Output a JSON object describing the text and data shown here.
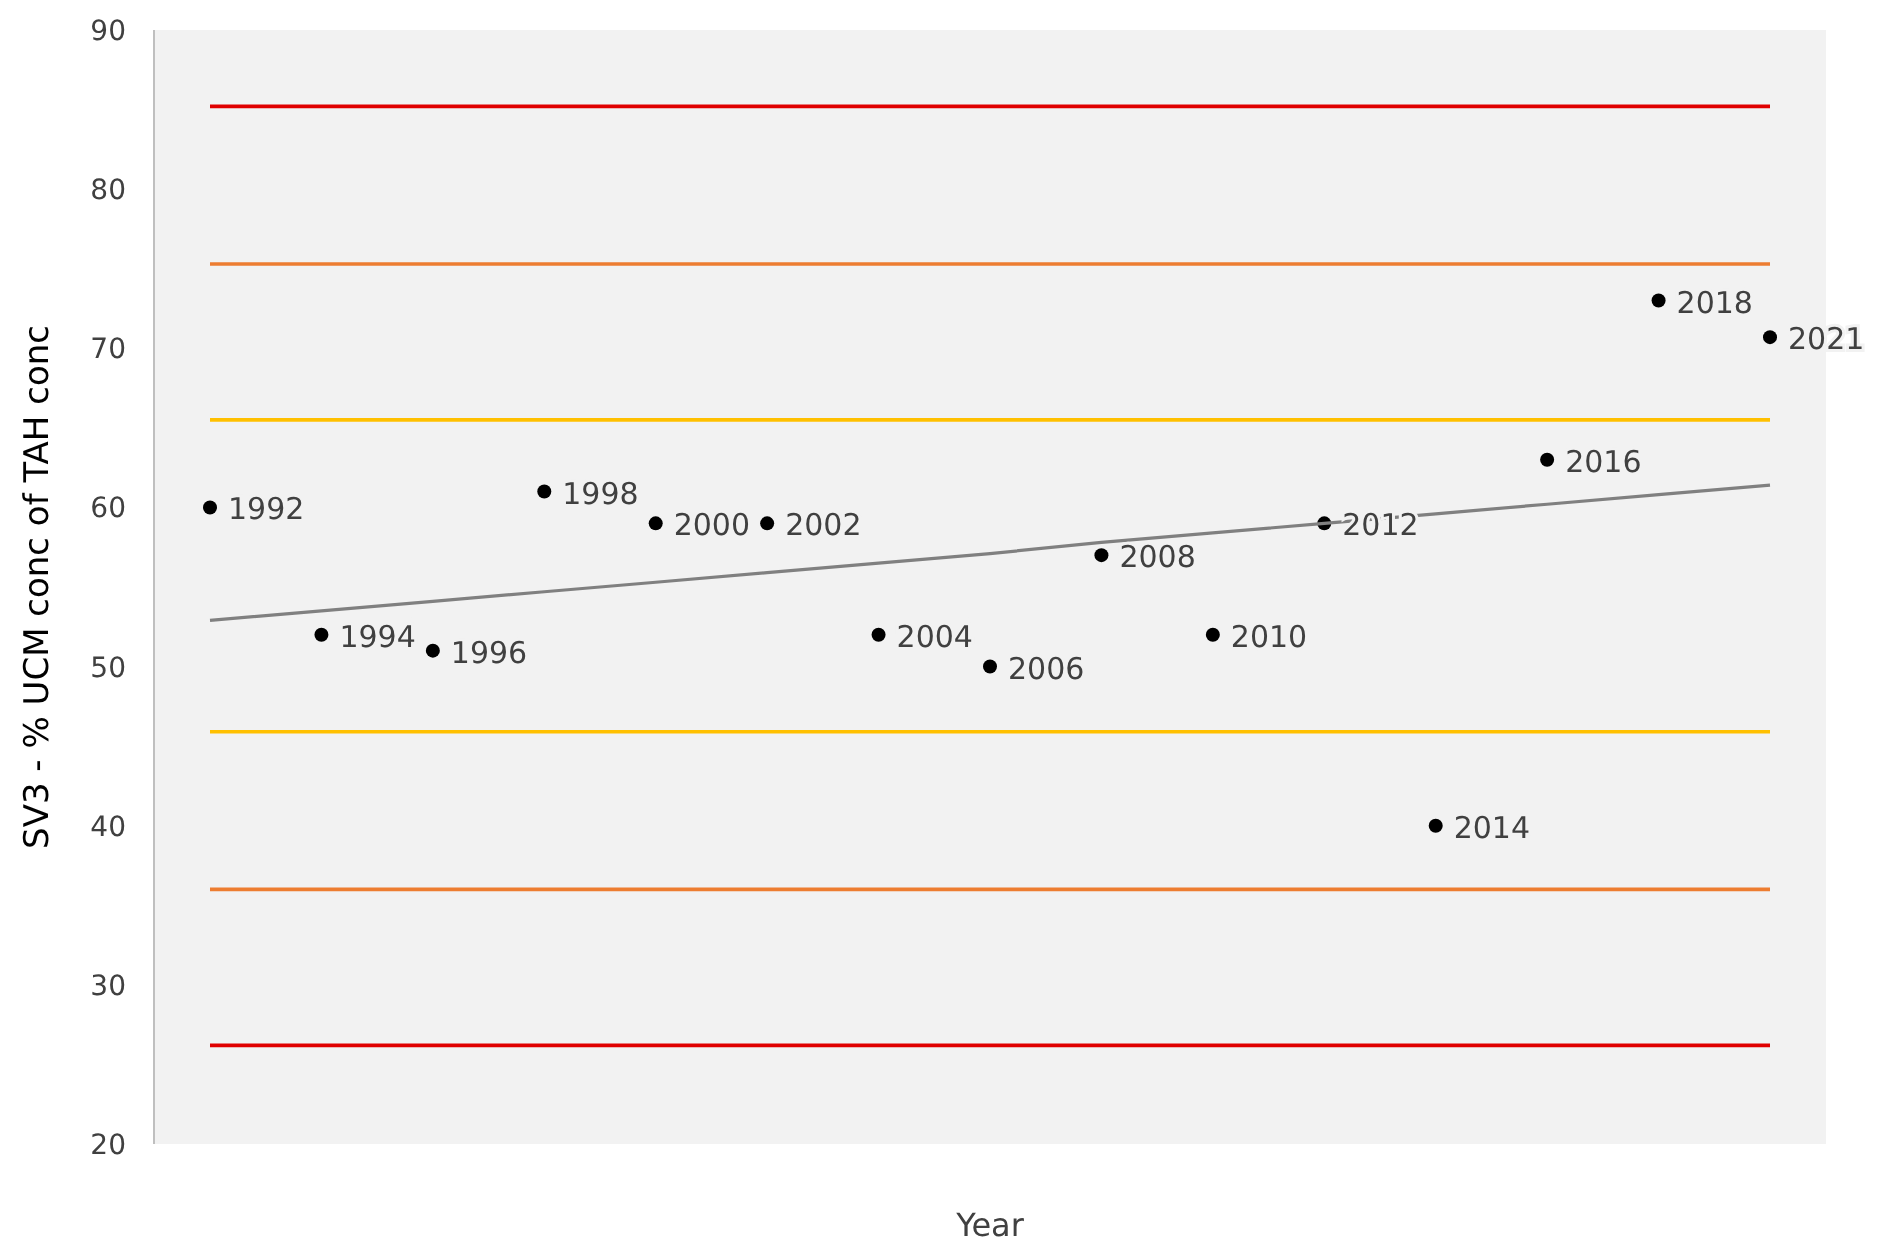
{
  "chart_data": {
    "type": "scatter",
    "xlabel": "Year",
    "ylabel": "SV3 - % UCM conc of TAH conc",
    "categories": [
      null,
      null,
      null,
      null,
      null,
      null,
      null,
      null,
      null,
      null,
      null,
      null,
      null,
      null,
      null
    ],
    "series": [
      {
        "color": "#000000",
        "values": [
          60,
          52,
          51,
          61,
          59,
          59,
          52,
          50,
          57,
          52,
          59,
          40,
          63,
          73,
          70.7
        ]
      },
      {
        "type": "line",
        "color": "#808080",
        "values": [
          52.9,
          53.5,
          54.1,
          54.7,
          55.3,
          55.9,
          56.5,
          57.1,
          57.8,
          58.4,
          59.0,
          59.6,
          60.2,
          60.8,
          61.4
        ]
      }
    ],
    "annotations": [
      "1992",
      "1994",
      "1996",
      "1998",
      "2000",
      "2002",
      "2004",
      "2006",
      "2008",
      "2010",
      "2012",
      "2014",
      "2016",
      "2018",
      "2021"
    ],
    "ylim": [
      20,
      90
    ],
    "yticks": [
      20,
      30,
      40,
      50,
      60,
      70,
      80,
      90
    ],
    "tick_labels": "y",
    "grid": false,
    "ref_lines": [
      {
        "axis": "y",
        "value": 85.2,
        "color": "#e00000"
      },
      {
        "axis": "y",
        "value": 75.3,
        "color": "#ed7d31"
      },
      {
        "axis": "y",
        "value": 65.5,
        "color": "#ffc000"
      },
      {
        "axis": "y",
        "value": 45.9,
        "color": "#ffc000"
      },
      {
        "axis": "y",
        "value": 36.0,
        "color": "#ed7d31"
      },
      {
        "axis": "y",
        "value": 26.2,
        "color": "#e00000"
      }
    ]
  }
}
